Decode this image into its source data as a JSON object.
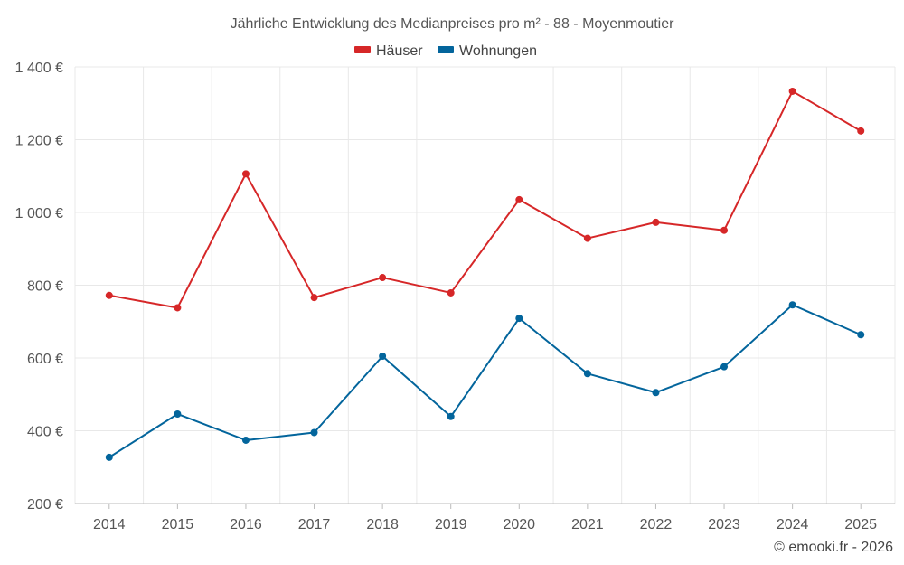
{
  "chart_data": {
    "type": "line",
    "title": "Jährliche Entwicklung des Medianpreises pro m² - 88 - Moyenmoutier",
    "categories": [
      "2014",
      "2015",
      "2016",
      "2017",
      "2018",
      "2019",
      "2020",
      "2021",
      "2022",
      "2023",
      "2024",
      "2025"
    ],
    "series": [
      {
        "name": "Häuser",
        "color": "#d62728",
        "values": [
          772,
          738,
          1106,
          766,
          821,
          779,
          1035,
          929,
          973,
          951,
          1333,
          1224
        ]
      },
      {
        "name": "Wohnungen",
        "color": "#03659c",
        "values": [
          327,
          446,
          374,
          395,
          605,
          439,
          709,
          557,
          505,
          576,
          746,
          664
        ]
      }
    ],
    "ylim": [
      200,
      1400
    ],
    "yticks": [
      200,
      400,
      600,
      800,
      1000,
      1200,
      1400
    ],
    "ytick_labels": [
      "200 €",
      "400 €",
      "600 €",
      "800 €",
      "1 000 €",
      "1 200 €",
      "1 400 €"
    ],
    "grid": true,
    "legend_position": "top-center"
  },
  "credit": "© emooki.fr - 2026"
}
